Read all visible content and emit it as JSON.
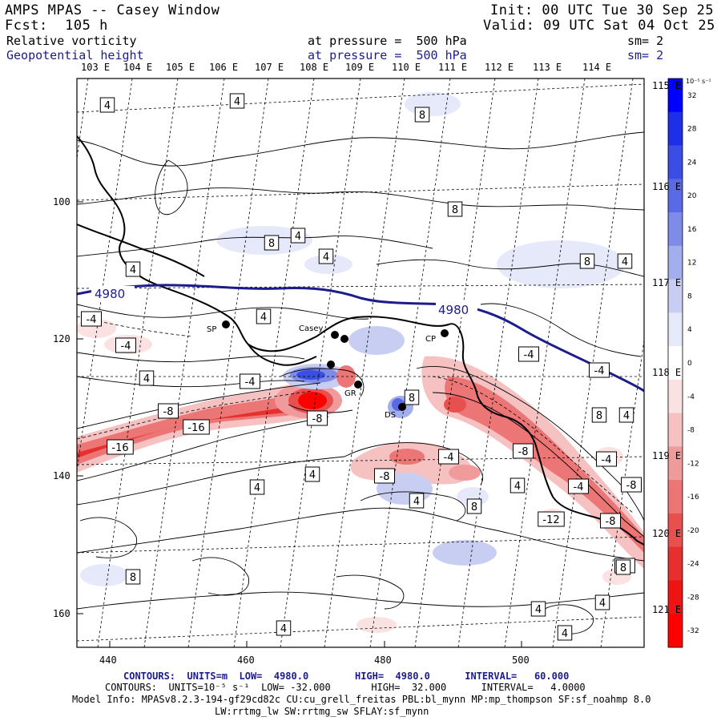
{
  "header": {
    "model_title": "AMPS MPAS -- Casey Window",
    "forecast": "Fcst:  105 h",
    "init": "Init: 00 UTC Tue 30 Sep 25",
    "valid": "Valid: 09 UTC Sat 04 Oct 25",
    "field1_name": "Relative vorticity",
    "field1_level": "at pressure =  500 hPa",
    "field1_sm": "sm= 2",
    "field2_name": "Geopotential height",
    "field2_level": "at pressure =  500 hPa",
    "field2_sm": "sm= 2"
  },
  "map": {
    "top_longitudes": [
      "103 E",
      "104 E",
      "105 E",
      "106 E",
      "107 E",
      "108 E",
      "109 E",
      "110 E",
      "111 E",
      "112 E",
      "113 E",
      "114 E"
    ],
    "right_latitudes": [
      "115 E",
      "116 E",
      "117 E",
      "118 E",
      "119 E",
      "120 E",
      "121 E"
    ],
    "x_ticks": [
      "440",
      "460",
      "480",
      "500"
    ],
    "y_ticks": [
      "100",
      "120",
      "140",
      "160"
    ],
    "stations": [
      {
        "name": "SP"
      },
      {
        "name": "Casey"
      },
      {
        "name": "CP"
      },
      {
        "name": "DS"
      },
      {
        "name": "GR"
      }
    ],
    "height_label": "4980",
    "height_label_2": "4980",
    "contour_labels": [
      "4",
      "4",
      "8",
      "8",
      "4",
      "8",
      "4",
      "-4",
      "-4",
      "4",
      "4",
      "-8",
      "-16",
      "-16",
      "-8",
      "-4",
      "-4",
      "8",
      "-8",
      "-4",
      "4",
      "4",
      "8",
      "-8",
      "-4",
      "-8",
      "8",
      "4",
      "-4",
      "-12",
      "-4",
      "-8",
      "4",
      "4",
      "-8",
      "4",
      "4",
      "8",
      "4",
      "4",
      "8",
      "8",
      "4",
      "4"
    ]
  },
  "colorbar": {
    "unit": "10⁻⁵ s⁻¹",
    "labels": [
      "32",
      "28",
      "24",
      "20",
      "16",
      "12",
      "8",
      "4",
      "0",
      "-4",
      "-8",
      "-12",
      "-16",
      "-20",
      "-24",
      "-28",
      "-32"
    ],
    "colors": [
      "#0000ff",
      "#1e2fe8",
      "#3a4ee6",
      "#5a6ae4",
      "#7e8be8",
      "#a3aeec",
      "#c7cef2",
      "#e6e9f9",
      "#ffffff",
      "#fbe2e2",
      "#f6c1c1",
      "#f09b9b",
      "#ec7575",
      "#e85050",
      "#e62f2f",
      "#ee1414",
      "#ff0000"
    ]
  },
  "footer": {
    "contours1": "CONTOURS:  UNITS=m  LOW=  4980.0        HIGH=  4980.0      INTERVAL=   60.000",
    "contours2": "CONTOURS:  UNITS=10⁻⁵ s⁻¹  LOW= -32.000       HIGH=  32.000      INTERVAL=   4.0000",
    "model_info": "Model Info: MPASv8.2.3-194-gf29cd82c CU:cu_grell_freitas PBL:bl_mynn MP:mp_thompson SF:sf_noahmp 8.0",
    "model_info2": "LW:rrtmg_lw SW:rrtmg_sw SFLAY:sf_mynn"
  }
}
